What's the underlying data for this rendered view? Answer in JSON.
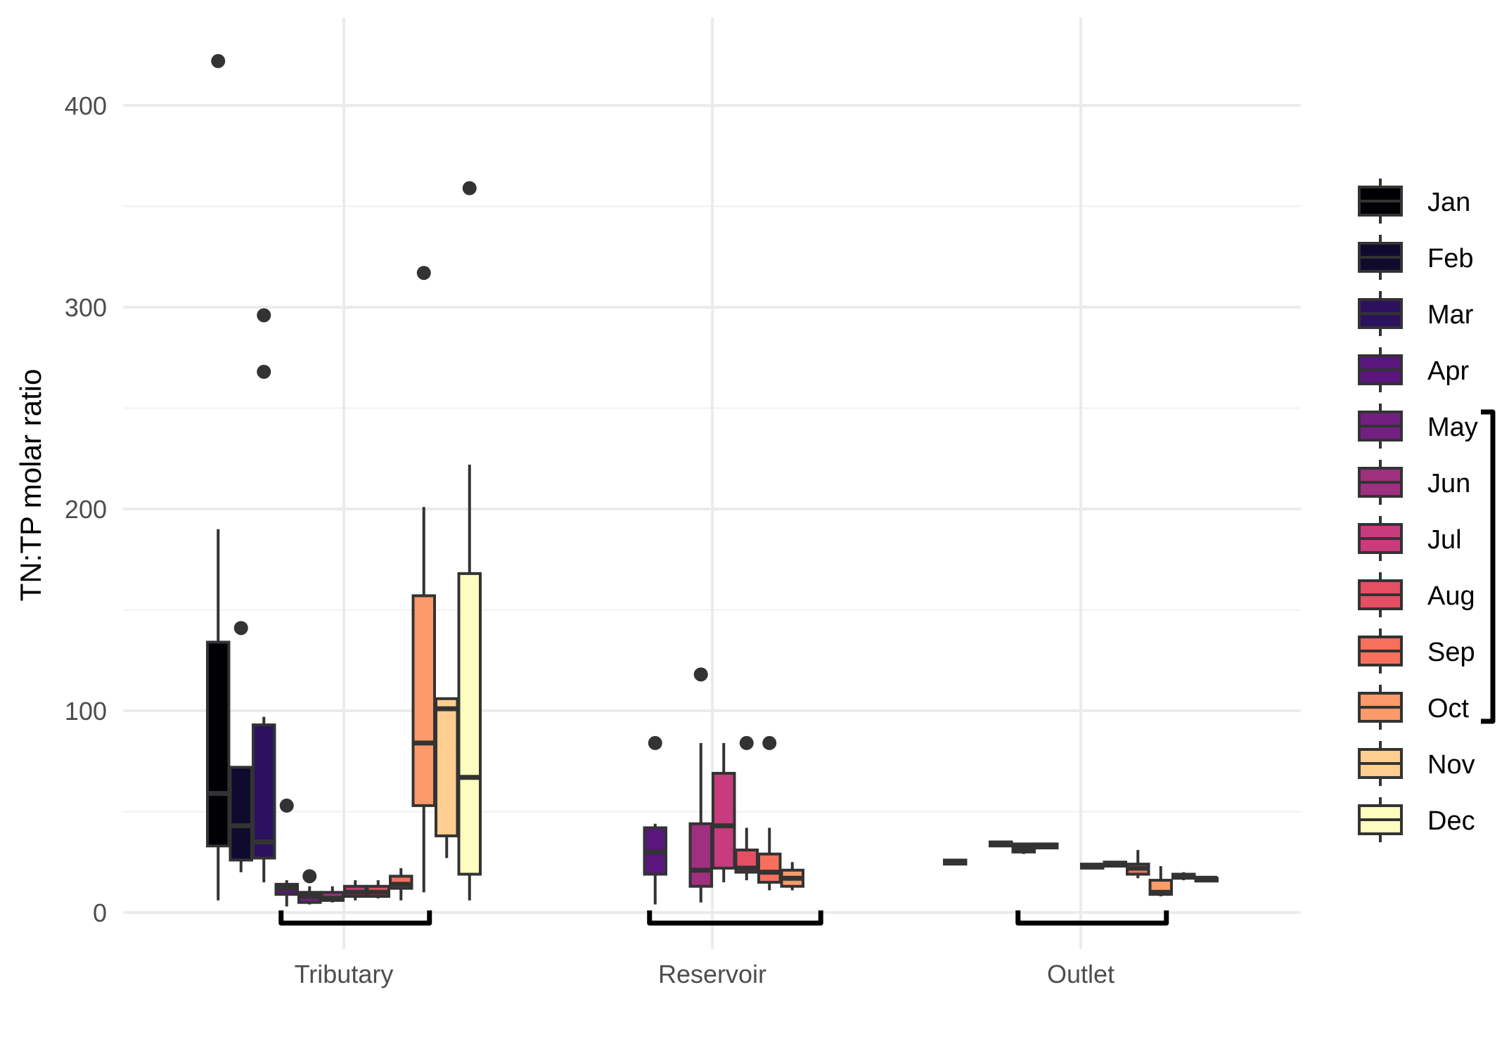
{
  "chart_data": {
    "type": "boxplot",
    "title": "",
    "xlabel": "",
    "ylabel": "TN:TP molar ratio",
    "ylim": [
      -18,
      435
    ],
    "yticks": [
      0,
      100,
      200,
      300,
      400
    ],
    "grid": true,
    "legend_position": "right",
    "categories": [
      "Tributary",
      "Reservoir",
      "Outlet"
    ],
    "months": [
      "Jan",
      "Feb",
      "Mar",
      "Apr",
      "May",
      "Jun",
      "Jul",
      "Aug",
      "Sep",
      "Oct",
      "Nov",
      "Dec"
    ],
    "colors": {
      "Jan": "#000004",
      "Feb": "#100B2E",
      "Mar": "#2C115F",
      "Apr": "#5A167E",
      "May": "#721F81",
      "Jun": "#9F2F7F",
      "Jul": "#C83B7C",
      "Aug": "#E44F64",
      "Sep": "#F7705C",
      "Oct": "#FD9A6A",
      "Nov": "#FECE91",
      "Dec": "#FCFDBF"
    },
    "boxes": [
      {
        "category": "Tributary",
        "month": "Jan",
        "slot": 0,
        "low": 6,
        "q1": 33,
        "median": 59,
        "q3": 134,
        "high": 190,
        "outliers": [
          422
        ]
      },
      {
        "category": "Tributary",
        "month": "Feb",
        "slot": 1,
        "low": 20,
        "q1": 26,
        "median": 43,
        "q3": 72,
        "high": 72,
        "outliers": [
          141
        ]
      },
      {
        "category": "Tributary",
        "month": "Mar",
        "slot": 2,
        "low": 15,
        "q1": 27,
        "median": 35,
        "q3": 93,
        "high": 97,
        "outliers": [
          296,
          268
        ]
      },
      {
        "category": "Tributary",
        "month": "Apr",
        "slot": 3,
        "low": 3,
        "q1": 9,
        "median": 12,
        "q3": 14,
        "high": 16,
        "outliers": [
          53
        ]
      },
      {
        "category": "Tributary",
        "month": "May",
        "slot": 4,
        "low": 4,
        "q1": 5,
        "median": 8,
        "q3": 10,
        "high": 13,
        "outliers": [
          18
        ]
      },
      {
        "category": "Tributary",
        "month": "Jun",
        "slot": 5,
        "low": 5,
        "q1": 6,
        "median": 7,
        "q3": 10,
        "high": 13,
        "outliers": []
      },
      {
        "category": "Tributary",
        "month": "Jul",
        "slot": 6,
        "low": 6,
        "q1": 8,
        "median": 10,
        "q3": 13,
        "high": 16,
        "outliers": []
      },
      {
        "category": "Tributary",
        "month": "Aug",
        "slot": 7,
        "low": 7,
        "q1": 8,
        "median": 10,
        "q3": 13,
        "high": 16,
        "outliers": []
      },
      {
        "category": "Tributary",
        "month": "Sep",
        "slot": 8,
        "low": 6,
        "q1": 12,
        "median": 14,
        "q3": 18,
        "high": 22,
        "outliers": []
      },
      {
        "category": "Tributary",
        "month": "Oct",
        "slot": 9,
        "low": 10,
        "q1": 53,
        "median": 84,
        "q3": 157,
        "high": 201,
        "outliers": [
          317
        ]
      },
      {
        "category": "Tributary",
        "month": "Nov",
        "slot": 10,
        "low": 27,
        "q1": 38,
        "median": 101,
        "q3": 106,
        "high": 106,
        "outliers": []
      },
      {
        "category": "Tributary",
        "month": "Dec",
        "slot": 11,
        "low": 6,
        "q1": 19,
        "median": 67,
        "q3": 168,
        "high": 222,
        "outliers": [
          359
        ]
      },
      {
        "category": "Reservoir",
        "month": "Apr",
        "slot": 3,
        "low": 4,
        "q1": 19,
        "median": 30,
        "q3": 42,
        "high": 44,
        "outliers": [
          84
        ]
      },
      {
        "category": "Reservoir",
        "month": "Jun",
        "slot": 5,
        "low": 5,
        "q1": 13,
        "median": 21,
        "q3": 44,
        "high": 84,
        "outliers": [
          118
        ]
      },
      {
        "category": "Reservoir",
        "month": "Jul",
        "slot": 6,
        "low": 15,
        "q1": 22,
        "median": 43,
        "q3": 69,
        "high": 84,
        "outliers": []
      },
      {
        "category": "Reservoir",
        "month": "Aug",
        "slot": 7,
        "low": 16,
        "q1": 20,
        "median": 22,
        "q3": 31,
        "high": 42,
        "outliers": [
          84
        ]
      },
      {
        "category": "Reservoir",
        "month": "Sep",
        "slot": 8,
        "low": 11,
        "q1": 15,
        "median": 20,
        "q3": 29,
        "high": 42,
        "outliers": [
          84
        ]
      },
      {
        "category": "Reservoir",
        "month": "Oct",
        "slot": 9,
        "low": 11,
        "q1": 13,
        "median": 17,
        "q3": 21,
        "high": 25,
        "outliers": []
      },
      {
        "category": "Outlet",
        "month": "Jan",
        "slot": 0,
        "low": 24,
        "q1": 24,
        "median": 25,
        "q3": 26,
        "high": 26,
        "outliers": []
      },
      {
        "category": "Outlet",
        "month": "Mar",
        "slot": 2,
        "low": 33,
        "q1": 33,
        "median": 34,
        "q3": 35,
        "high": 35,
        "outliers": []
      },
      {
        "category": "Outlet",
        "month": "Apr",
        "slot": 3,
        "low": 29,
        "q1": 30,
        "median": 32,
        "q3": 34,
        "high": 34,
        "outliers": []
      },
      {
        "category": "Outlet",
        "month": "May",
        "slot": 4,
        "low": 32,
        "q1": 32,
        "median": 33,
        "q3": 34,
        "high": 34,
        "outliers": []
      },
      {
        "category": "Outlet",
        "month": "Jul",
        "slot": 6,
        "low": 22,
        "q1": 22,
        "median": 23,
        "q3": 24,
        "high": 24,
        "outliers": []
      },
      {
        "category": "Outlet",
        "month": "Aug",
        "slot": 7,
        "low": 23,
        "q1": 23,
        "median": 24,
        "q3": 25,
        "high": 25,
        "outliers": []
      },
      {
        "category": "Outlet",
        "month": "Sep",
        "slot": 8,
        "low": 17,
        "q1": 19,
        "median": 22,
        "q3": 24,
        "high": 31,
        "outliers": []
      },
      {
        "category": "Outlet",
        "month": "Oct",
        "slot": 9,
        "low": 8,
        "q1": 9,
        "median": 10,
        "q3": 16,
        "high": 23,
        "outliers": []
      },
      {
        "category": "Outlet",
        "month": "Nov",
        "slot": 10,
        "low": 16,
        "q1": 17,
        "median": 18,
        "q3": 19,
        "high": 20,
        "outliers": []
      },
      {
        "category": "Outlet",
        "month": "Dec",
        "slot": 11,
        "low": 16,
        "q1": 16,
        "median": 17,
        "q3": 17,
        "high": 18,
        "outliers": []
      }
    ],
    "group_brackets": [
      {
        "category": "Tributary",
        "from_slot": 3,
        "to_slot": 9
      },
      {
        "category": "Reservoir",
        "from_slot": 3,
        "to_slot": 10
      },
      {
        "category": "Outlet",
        "from_slot": 3,
        "to_slot": 9
      }
    ],
    "legend_bracket": {
      "from_month": "May",
      "to_month": "Oct"
    }
  }
}
